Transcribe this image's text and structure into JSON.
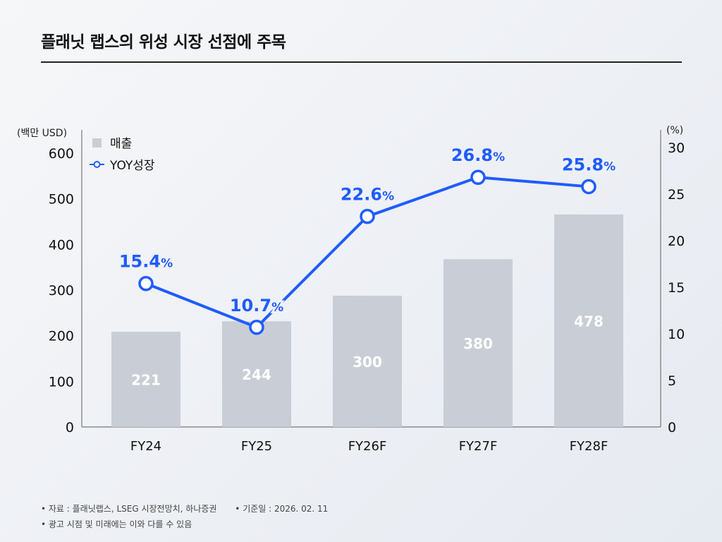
{
  "title": "플래닛 랩스의 위성 시장 선점에 주목",
  "chart_data": {
    "type": "bar+line",
    "categories": [
      "FY24",
      "FY25",
      "FY26F",
      "FY27F",
      "FY28F"
    ],
    "series": [
      {
        "name": "매출",
        "type": "bar",
        "axis": "left",
        "values": [
          221,
          244,
          300,
          380,
          478
        ],
        "color": "#c9ced6"
      },
      {
        "name": "YOY성장",
        "type": "line",
        "axis": "right",
        "values": [
          15.4,
          10.7,
          22.6,
          26.8,
          25.8
        ],
        "color": "#1f5cff"
      }
    ],
    "left_axis": {
      "label": "(백만 USD)",
      "range": [
        0,
        600
      ],
      "ticks": [
        "0",
        "100",
        "200",
        "300",
        "400",
        "500",
        "600"
      ]
    },
    "right_axis": {
      "label": "(%)",
      "range": [
        0,
        30
      ],
      "ticks": [
        "0",
        "5",
        "10",
        "15",
        "20",
        "25",
        "30"
      ]
    },
    "bar_labels": [
      "221",
      "244",
      "300",
      "380",
      "478"
    ],
    "line_labels": [
      "15.4",
      "10.7",
      "22.6",
      "26.8",
      "25.8"
    ],
    "line_label_unit": "%",
    "legend_position": "top-left",
    "grid": false
  },
  "footnotes": {
    "source": "• 자료 : 플래닛랩스, LSEG 시장전망치, 하나증권",
    "date": "• 기준일 : 2026. 02. 11",
    "disclaimer": "• 광고 시점 및 미래에는 이와 다를 수 있음"
  }
}
